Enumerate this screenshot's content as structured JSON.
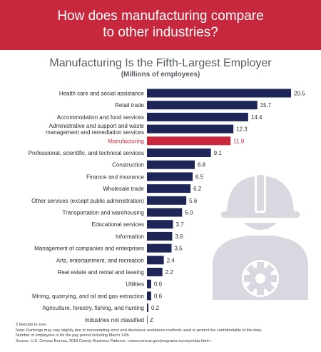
{
  "header": {
    "line1": "How does manufacturing compare",
    "line2": "to other industries?"
  },
  "colors": {
    "header_bg": "#c8283e",
    "bar": "#1e2557",
    "highlight": "#c8283e",
    "text": "#2b2b2b",
    "icon": "#d7d8e0"
  },
  "icon": "worker-hardhat-gear-icon",
  "chart_data": {
    "type": "bar",
    "orientation": "horizontal",
    "title": "Manufacturing Is the Fifth-Largest Employer",
    "subtitle": "(Millions of employees)",
    "xlabel": "",
    "ylabel": "",
    "grid": false,
    "highlight_category": "Manufacturing",
    "categories": [
      "Health care and social assistance",
      "Retail trade",
      "Accommodation and food services",
      "Administrative and support and waste management and remediation services",
      "Manufacturing",
      "Professional, scientific, and technical services",
      "Construction",
      "Finance and insurance",
      "Wholesale trade",
      "Other services (except public administration)",
      "Transportation and warehousing",
      "Educational services",
      "Information",
      "Management of companies and enterprises",
      "Arts, entertainment, and recreation",
      "Real estate and rental and leasing",
      "Utilities",
      "Mining, quarrying, and oil and gas extraction",
      "Agriculture, forestry, fishing, and hunting",
      "Industries not classified"
    ],
    "category_label_lines": [
      [
        "Health care and social assistance"
      ],
      [
        "Retail trade"
      ],
      [
        "Accommodation and food services"
      ],
      [
        "Administrative and support and waste",
        "management and remediation services"
      ],
      [
        "Manufacturing"
      ],
      [
        "Professional, scientific, and technical services"
      ],
      [
        "Construction"
      ],
      [
        "Finance and insurance"
      ],
      [
        "Wholesale trade"
      ],
      [
        "Other services (except public administration)"
      ],
      [
        "Transportation and warehousing"
      ],
      [
        "Educational services"
      ],
      [
        "Information"
      ],
      [
        "Management of companies and enterprises"
      ],
      [
        "Arts, entertainment, and recreation"
      ],
      [
        "Real estate and rental and leasing"
      ],
      [
        "Utilities"
      ],
      [
        "Mining, quarrying, and oil and gas extraction"
      ],
      [
        "Agriculture, forestry, fishing, and hunting"
      ],
      [
        "Industries not classified"
      ]
    ],
    "values": [
      20.5,
      15.7,
      14.4,
      12.3,
      11.9,
      9.1,
      6.8,
      6.5,
      6.2,
      5.6,
      5.0,
      3.7,
      3.6,
      3.5,
      2.4,
      2.2,
      0.6,
      0.6,
      0.2,
      0
    ],
    "value_labels": [
      "20.5",
      "15.7",
      "14.4",
      "12.3",
      "11.9",
      "9.1",
      "6.8",
      "6.5",
      "6.2",
      "5.6",
      "5.0",
      "3.7",
      "3.6",
      "3.5",
      "2.4",
      "2.2",
      "0.6",
      "0.6",
      "0.2",
      "Z"
    ],
    "xlim": [
      0,
      20.5
    ]
  },
  "notes": {
    "line1": "Z Rounds to zero.",
    "line2": "Note: Rankings may vary slightly due to nonsampling error and disclosure avoidance methods used to protect the confidentiality of the data.",
    "line3": "Number of employees is for the pay period including March 12th.",
    "line4": "Source: U.S. Census Bureau, 2018 County Business Patterns, <www.census.gov/programs-surveys/cbp.html>."
  }
}
